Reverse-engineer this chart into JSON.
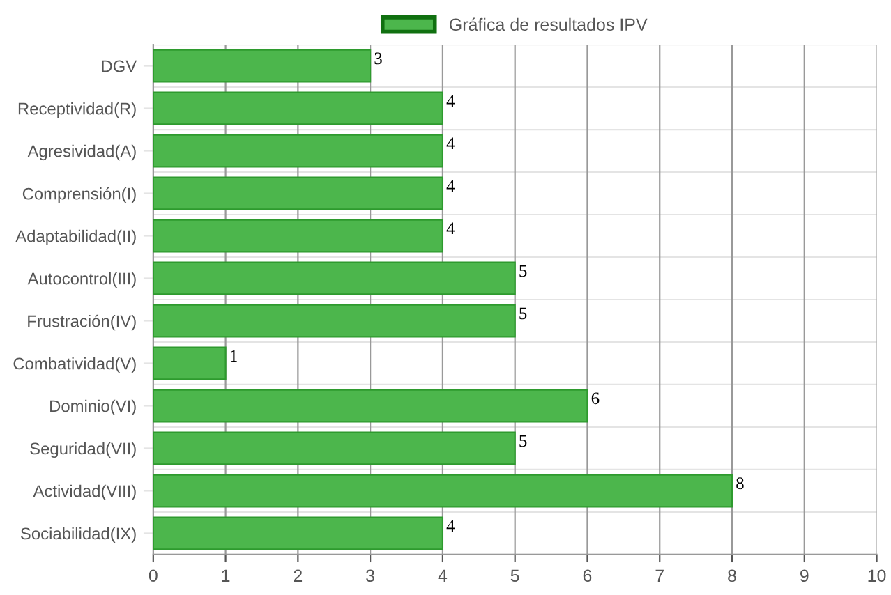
{
  "chart_data": {
    "type": "bar",
    "orientation": "horizontal",
    "categories": [
      "DGV",
      "Receptividad(R)",
      "Agresividad(A)",
      "Comprensión(I)",
      "Adaptabilidad(II)",
      "Autocontrol(III)",
      "Frustración(IV)",
      "Combatividad(V)",
      "Dominio(VI)",
      "Seguridad(VII)",
      "Actividad(VIII)",
      "Sociabilidad(IX)"
    ],
    "series": [
      {
        "name": "Gráfica de resultados IPV",
        "color": "#4cb64c",
        "values": [
          3,
          4,
          4,
          4,
          4,
          5,
          5,
          1,
          6,
          5,
          8,
          4
        ]
      }
    ],
    "xlim": [
      0,
      10
    ],
    "xticks": [
      0,
      1,
      2,
      3,
      4,
      5,
      6,
      7,
      8,
      9,
      10
    ],
    "grid": true,
    "legend": "top",
    "data_labels": true
  }
}
